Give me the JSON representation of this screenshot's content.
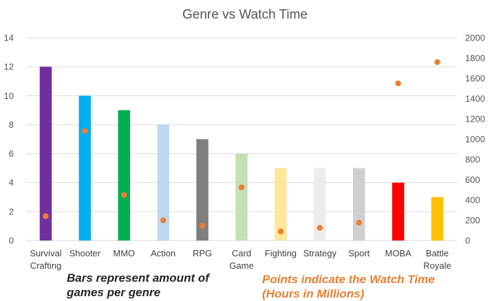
{
  "chart_data": {
    "type": "bar",
    "title": "Genre vs Watch Time",
    "categories": [
      [
        "Survival",
        "Crafting"
      ],
      [
        "Shooter"
      ],
      [
        "MMO"
      ],
      [
        "Action"
      ],
      [
        "RPG"
      ],
      [
        "Card",
        "Game"
      ],
      [
        "Fighting"
      ],
      [
        "Strategy"
      ],
      [
        "Sport"
      ],
      [
        "MOBA"
      ],
      [
        "Battle",
        "Royale"
      ]
    ],
    "series": [
      {
        "type": "bar",
        "axis": "left",
        "values": [
          12,
          10,
          9,
          8,
          7,
          6,
          5,
          5,
          5,
          4,
          3
        ],
        "colors": [
          "#7030a0",
          "#00b0f0",
          "#00b050",
          "#bdd7ee",
          "#7f7f7f",
          "#c5e0b4",
          "#ffe699",
          "#ededed",
          "#d0cece",
          "#ff0000",
          "#ffc000"
        ]
      },
      {
        "type": "scatter",
        "axis": "right",
        "values": [
          240,
          1080,
          450,
          200,
          145,
          525,
          90,
          125,
          175,
          1550,
          1760
        ],
        "color": "#ed7d31"
      }
    ],
    "y_left": {
      "min": 0,
      "max": 14,
      "ticks": [
        "0",
        "2",
        "4",
        "6",
        "8",
        "10",
        "12",
        "14"
      ]
    },
    "y_right": {
      "min": 0,
      "max": 2000,
      "ticks": [
        "0",
        "200",
        "400",
        "600",
        "800",
        "1000",
        "1200",
        "1400",
        "1600",
        "1800",
        "2000"
      ]
    },
    "grid": true,
    "legend": "none"
  },
  "notes": {
    "left": "Bars represent amount of games per genre",
    "right": "Points indicate the Watch Time (Hours in Millions)"
  }
}
